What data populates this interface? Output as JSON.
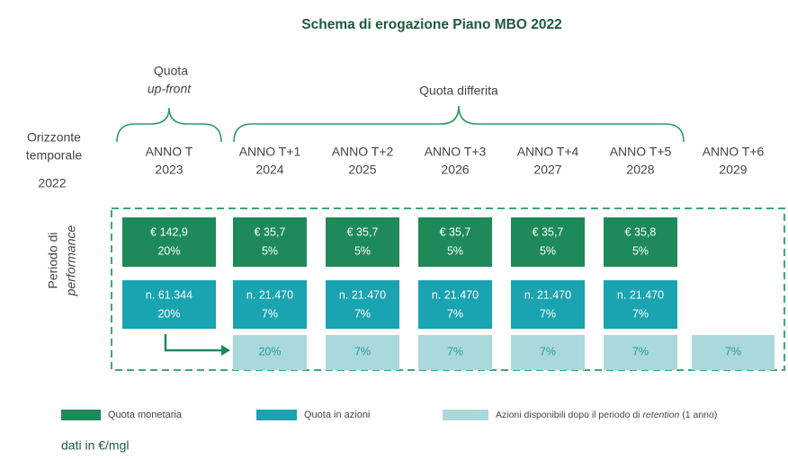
{
  "title": "Schema di erogazione Piano MBO 2022",
  "groups": {
    "upfront": {
      "line1": "Quota",
      "line2": "up-front"
    },
    "deferred": "Quota differita"
  },
  "horizon": {
    "line1": "Orizzonte",
    "line2": "temporale",
    "year": "2022"
  },
  "columns": [
    {
      "label": "ANNO T",
      "year": "2023"
    },
    {
      "label": "ANNO T+1",
      "year": "2024"
    },
    {
      "label": "ANNO T+2",
      "year": "2025"
    },
    {
      "label": "ANNO T+3",
      "year": "2026"
    },
    {
      "label": "ANNO T+4",
      "year": "2027"
    },
    {
      "label": "ANNO T+5",
      "year": "2028"
    },
    {
      "label": "ANNO T+6",
      "year": "2029"
    }
  ],
  "performance": {
    "line1": "Periodo di",
    "line2": "performance"
  },
  "rows": {
    "cash": [
      {
        "amount": "€ 142,9",
        "pct": "20%"
      },
      {
        "amount": "€ 35,7",
        "pct": "5%"
      },
      {
        "amount": "€ 35,7",
        "pct": "5%"
      },
      {
        "amount": "€ 35,7",
        "pct": "5%"
      },
      {
        "amount": "€ 35,7",
        "pct": "5%"
      },
      {
        "amount": "€ 35,8",
        "pct": "5%"
      }
    ],
    "shares": [
      {
        "amount": "n. 61.344",
        "pct": "20%"
      },
      {
        "amount": "n. 21.470",
        "pct": "7%"
      },
      {
        "amount": "n. 21.470",
        "pct": "7%"
      },
      {
        "amount": "n. 21.470",
        "pct": "7%"
      },
      {
        "amount": "n. 21.470",
        "pct": "7%"
      },
      {
        "amount": "n. 21.470",
        "pct": "7%"
      }
    ],
    "available": [
      "20%",
      "7%",
      "7%",
      "7%",
      "7%",
      "7%"
    ]
  },
  "legend": {
    "cash": "Quota monetaria",
    "shares": "Quota in azioni",
    "available": {
      "before": "Azioni disponibili dopo il periodo di ",
      "italic": "retention",
      "after": " (1 anno)"
    }
  },
  "footnote": "dati in €/mgl"
}
